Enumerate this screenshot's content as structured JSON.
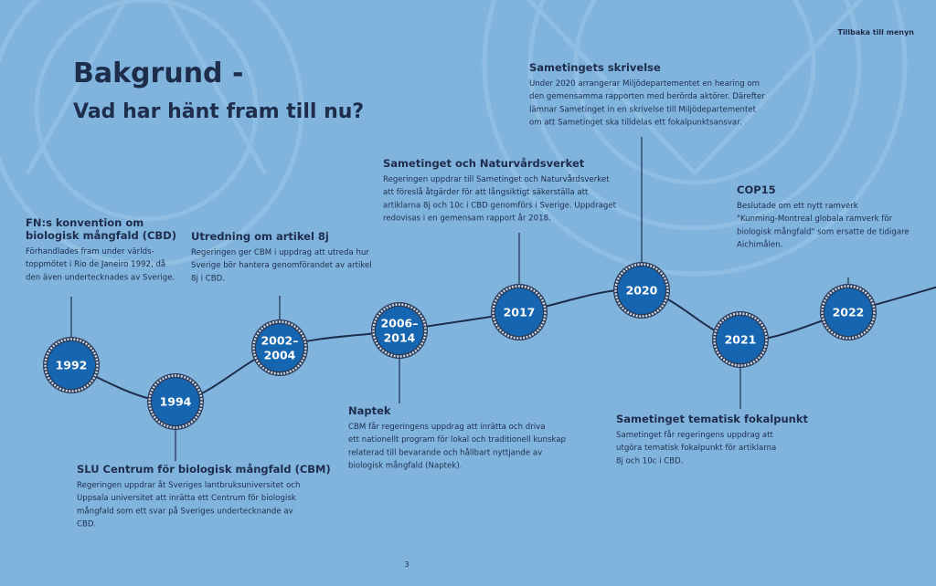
{
  "header": {
    "title": "Bakgrund -",
    "subtitle": "Vad har hänt fram till nu?",
    "back_link": "Tillbaka till menyn"
  },
  "events": [
    {
      "year": [
        "1992"
      ],
      "title": [
        "FN:s konvention om",
        "biologisk mångfald (CBD)"
      ],
      "body": [
        "Förhandlades fram under världs-",
        "toppmötet i Rio de Janeiro 1992, då",
        "den även undertecknades av Sverige."
      ]
    },
    {
      "year": [
        "1994"
      ],
      "title": [
        "SLU Centrum för biologisk mångfald (CBM)"
      ],
      "body": [
        "Regeringen uppdrar åt Sveriges lantbruksuniversitet och",
        "Uppsala universitet att inrätta ett Centrum för biologisk",
        "mångfald som ett svar på Sveriges undertecknande av",
        "CBD."
      ]
    },
    {
      "year": [
        "2002–",
        "2004"
      ],
      "title": [
        "Utredning om artikel 8j"
      ],
      "body": [
        "Regeringen ger CBM i uppdrag att utreda hur",
        "Sverige bör hantera genomförandet av artikel",
        "8j i CBD."
      ]
    },
    {
      "year": [
        "2006–",
        "2014"
      ],
      "title": [
        "Naptek"
      ],
      "body": [
        "CBM får regeringens uppdrag att inrätta och driva",
        "ett nationellt program för lokal och traditionell kunskap",
        "relaterad till bevarande och hållbart nyttjande av",
        "biologisk mångfald (Naptek)."
      ]
    },
    {
      "year": [
        "2017"
      ],
      "title": [
        "Sametinget och Naturvårdsverket"
      ],
      "body": [
        "Regeringen uppdrar till Sametinget och Naturvårdsverket",
        "att föreslå åtgärder för att långsiktigt säkerställa att",
        "artiklarna 8j och 10c i CBD genomförs i Sverige. Uppdraget",
        "redovisas i en gemensam rapport år 2018."
      ]
    },
    {
      "year": [
        "2020"
      ],
      "title": [
        "Sametingets skrivelse"
      ],
      "body": [
        "Under 2020 arrangerar Miljödepartementet en hearing om",
        "den gemensamma rapporten med berörda aktörer. Därefter",
        "lämnar Sametinget in en skrivelse till Miljödepartementet",
        "om att Sametinget ska tilldelas ett fokalpunktsansvar."
      ]
    },
    {
      "year": [
        "2021"
      ],
      "title": [
        "Sametinget tematisk fokalpunkt"
      ],
      "body": [
        "Sametinget får regeringens uppdrag att",
        "utgöra tematisk fokalpunkt för artiklarna",
        "8j och 10c i CBD."
      ]
    },
    {
      "year": [
        "2022"
      ],
      "title": [
        "COP15"
      ],
      "body": [
        "Beslutade om ett nytt ramverk",
        "\"Kunming-Montreal globala ramverk för",
        "biologisk mångfald\" som ersatte de tidigare",
        "Aichimålen."
      ]
    }
  ],
  "footer": {
    "page_number": "3"
  }
}
